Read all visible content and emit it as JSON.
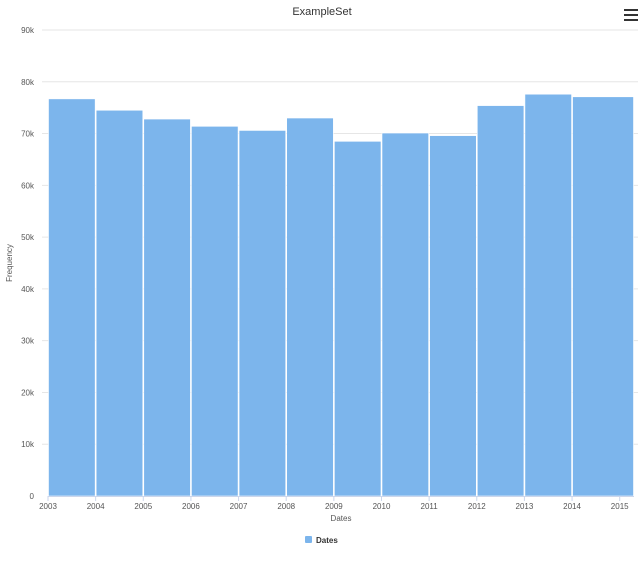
{
  "chart_data": {
    "type": "bar",
    "title": "ExampleSet",
    "xlabel": "Dates",
    "ylabel": "Frequency",
    "x_ticks": [
      "2003",
      "2004",
      "2005",
      "2006",
      "2007",
      "2008",
      "2009",
      "2010",
      "2011",
      "2012",
      "2013",
      "2014",
      "2015"
    ],
    "bins": [
      {
        "start": 2003,
        "end": 2004,
        "value": 76700
      },
      {
        "start": 2004,
        "end": 2005,
        "value": 74500
      },
      {
        "start": 2005,
        "end": 2006,
        "value": 72800
      },
      {
        "start": 2006,
        "end": 2007,
        "value": 71400
      },
      {
        "start": 2007,
        "end": 2008,
        "value": 70600
      },
      {
        "start": 2008,
        "end": 2009,
        "value": 73000
      },
      {
        "start": 2009,
        "end": 2010,
        "value": 68500
      },
      {
        "start": 2010,
        "end": 2011,
        "value": 70100
      },
      {
        "start": 2011,
        "end": 2012,
        "value": 69600
      },
      {
        "start": 2012,
        "end": 2013,
        "value": 75400
      },
      {
        "start": 2013,
        "end": 2014,
        "value": 77600
      },
      {
        "start": 2014,
        "end": 2015.3,
        "value": 77100
      }
    ],
    "ylim": [
      0,
      90000
    ],
    "y_ticks": [
      "0",
      "10k",
      "20k",
      "30k",
      "40k",
      "50k",
      "60k",
      "70k",
      "80k",
      "90k"
    ],
    "y_tick_values": [
      0,
      10000,
      20000,
      30000,
      40000,
      50000,
      60000,
      70000,
      80000,
      90000
    ],
    "xlim": [
      2003,
      2015.3
    ],
    "grid": true,
    "legend": {
      "position": "bottom-center",
      "entries": [
        "Dates"
      ]
    },
    "colors": {
      "bar": "#7cb5ec",
      "grid": "#e6e6e6",
      "axis": "#ccd6eb"
    }
  }
}
